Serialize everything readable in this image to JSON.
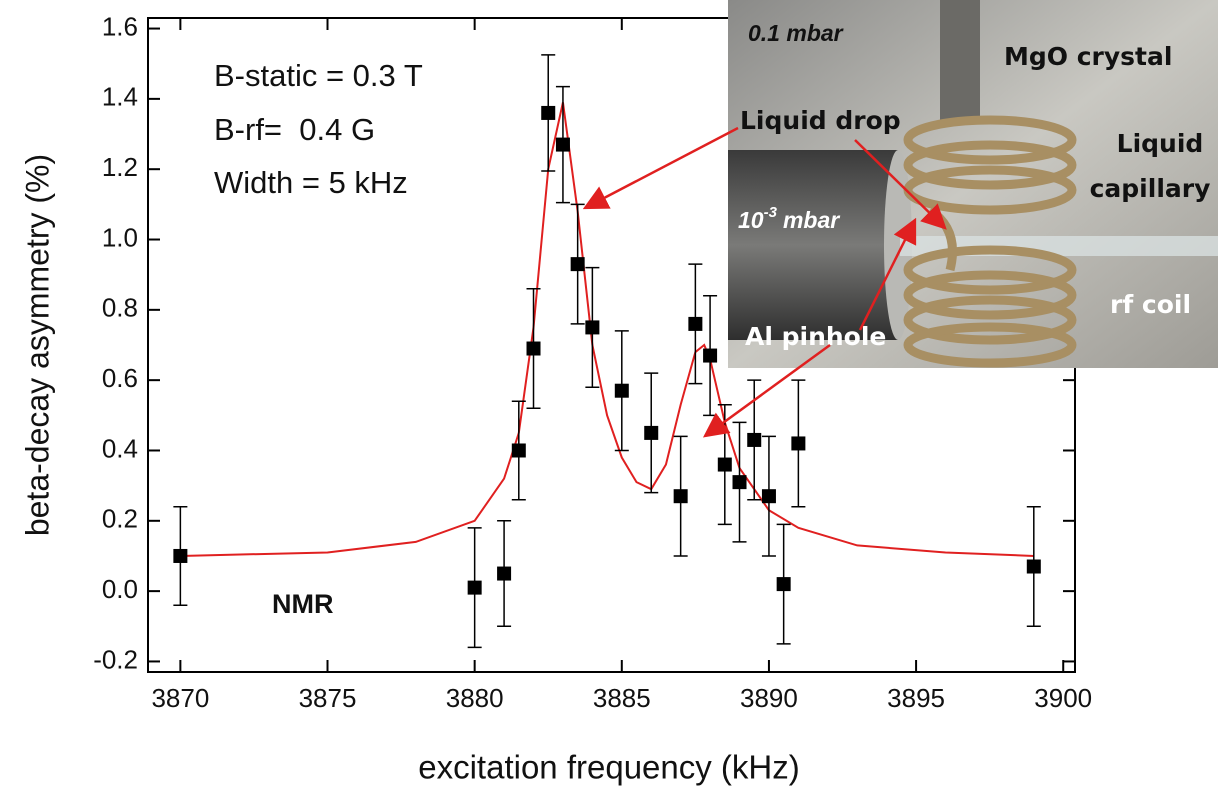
{
  "chart_data": {
    "type": "scatter",
    "x_label": "excitation frequency (kHz)",
    "y_label": "beta-decay asymmetry (%)",
    "xlim": [
      3868.9,
      3900.4
    ],
    "ylim": [
      -0.23,
      1.63
    ],
    "xticks": [
      3870,
      3875,
      3880,
      3885,
      3890,
      3895,
      3900
    ],
    "yticks": [
      -0.2,
      {
        "value": 0,
        "label": "0.0"
      },
      0.2,
      0.4,
      0.6,
      0.8,
      {
        "value": 1,
        "label": "1.0"
      },
      1.2,
      1.4,
      1.6
    ],
    "points": {
      "color": "#000000",
      "x": [
        3870,
        3880,
        3881,
        3881.5,
        3882,
        3882.5,
        3883,
        3883.5,
        3884,
        3885,
        3886,
        3887,
        3887.5,
        3888,
        3888.5,
        3889,
        3889.5,
        3890,
        3890.5,
        3891,
        3899
      ],
      "values": [
        0.1,
        0.01,
        0.05,
        0.4,
        0.69,
        1.36,
        1.27,
        0.93,
        0.75,
        0.57,
        0.45,
        0.27,
        0.76,
        0.67,
        0.36,
        0.31,
        0.43,
        0.27,
        0.02,
        0.42,
        0.07
      ],
      "errors": [
        0.14,
        0.17,
        0.15,
        0.14,
        0.17,
        0.165,
        0.165,
        0.17,
        0.17,
        0.17,
        0.17,
        0.17,
        0.17,
        0.17,
        0.17,
        0.17,
        0.17,
        0.17,
        0.17,
        0.18,
        0.17
      ]
    },
    "fit": {
      "color": "#e02020",
      "x": [
        3870,
        3875,
        3878,
        3880,
        3881,
        3881.5,
        3882,
        3882.5,
        3883,
        3883.5,
        3884,
        3884.5,
        3885,
        3885.5,
        3886,
        3886.5,
        3887,
        3887.5,
        3887.8,
        3888,
        3888.5,
        3889,
        3890,
        3891,
        3893,
        3896,
        3899
      ],
      "values": [
        0.1,
        0.11,
        0.14,
        0.2,
        0.32,
        0.45,
        0.75,
        1.2,
        1.39,
        1.08,
        0.7,
        0.5,
        0.38,
        0.31,
        0.29,
        0.36,
        0.53,
        0.68,
        0.7,
        0.66,
        0.48,
        0.35,
        0.23,
        0.18,
        0.13,
        0.11,
        0.1
      ]
    },
    "annotations": [
      "B-static = 0.3 T",
      "B-rf=  0.4 G",
      "Width = 5 kHz",
      "NMR"
    ]
  },
  "inset": {
    "pressure_top": "0.1 mbar",
    "crystal": "MgO crystal",
    "drop": "Liquid drop",
    "capillary": [
      "Liquid",
      "capillary"
    ],
    "pressure_low": {
      "base": "10",
      "exponent": "-3",
      "unit": "mbar"
    },
    "coil": "rf coil",
    "pinhole": "Al pinhole"
  }
}
